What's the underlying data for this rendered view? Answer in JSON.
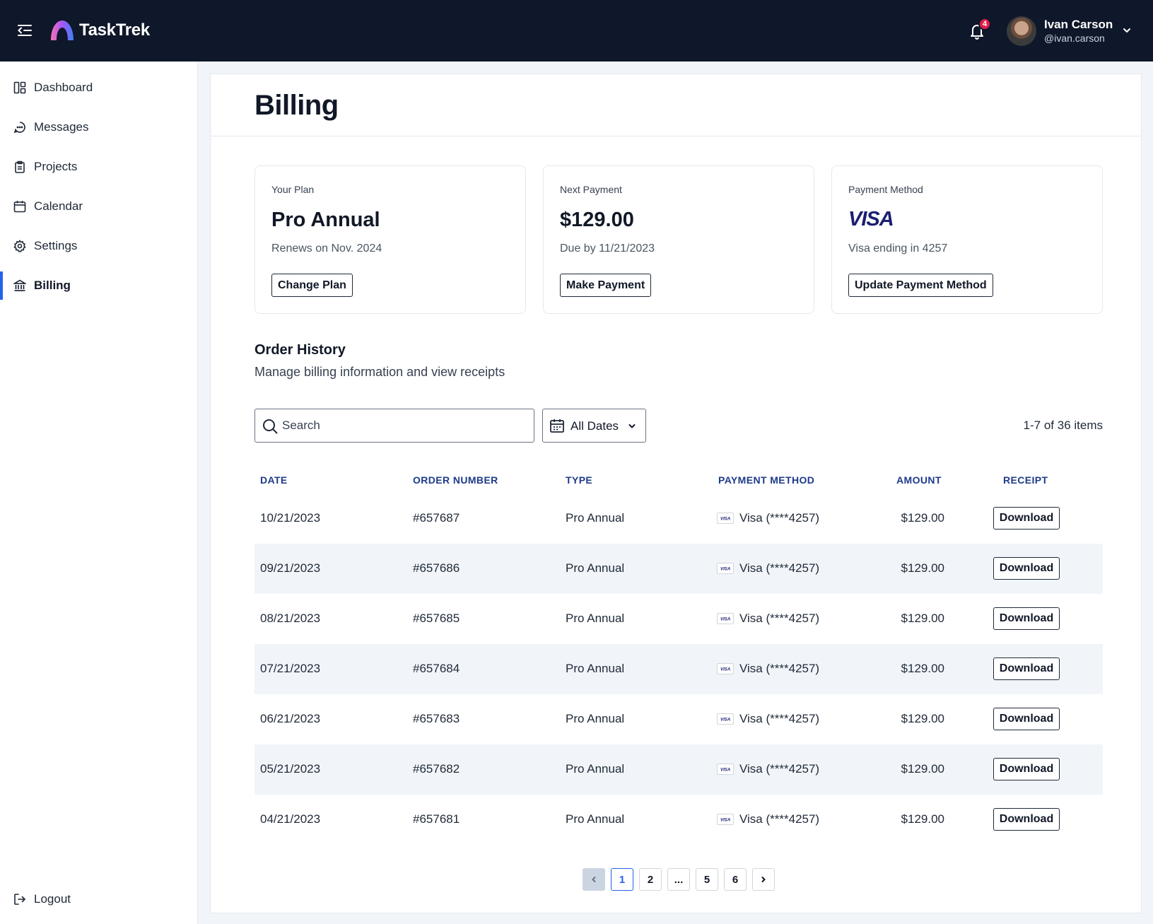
{
  "app": {
    "name": "TaskTrek",
    "notifications_count": "4",
    "user": {
      "name": "Ivan Carson",
      "handle": "@ivan.carson"
    }
  },
  "sidebar": {
    "items": [
      {
        "label": "Dashboard",
        "icon": "dashboard-icon"
      },
      {
        "label": "Messages",
        "icon": "message-icon"
      },
      {
        "label": "Projects",
        "icon": "clipboard-icon"
      },
      {
        "label": "Calendar",
        "icon": "calendar-icon"
      },
      {
        "label": "Settings",
        "icon": "gear-icon"
      },
      {
        "label": "Billing",
        "icon": "bank-icon",
        "active": true
      }
    ],
    "logout_label": "Logout"
  },
  "page": {
    "title": "Billing"
  },
  "cards": {
    "plan": {
      "label": "Your Plan",
      "value": "Pro Annual",
      "sub": "Renews on Nov. 2024",
      "button": "Change Plan"
    },
    "payment": {
      "label": "Next Payment",
      "value": "$129.00",
      "sub": "Due by 11/21/2023",
      "button": "Make Payment"
    },
    "method": {
      "label": "Payment Method",
      "logo": "VISA",
      "sub": "Visa ending in 4257",
      "button": "Update Payment Method"
    }
  },
  "orders": {
    "title": "Order History",
    "subtitle": "Manage billing information and view receipts",
    "search_placeholder": "Search",
    "date_filter": "All Dates",
    "items_count": "1-7 of 36 items",
    "columns": [
      "DATE",
      "ORDER NUMBER",
      "TYPE",
      "PAYMENT METHOD",
      "AMOUNT",
      "RECEIPT"
    ],
    "rows": [
      {
        "date": "10/21/2023",
        "order": "#657687",
        "type": "Pro Annual",
        "method": "Visa (****4257)",
        "amount": "$129.00",
        "receipt": "Download"
      },
      {
        "date": "09/21/2023",
        "order": "#657686",
        "type": "Pro Annual",
        "method": "Visa (****4257)",
        "amount": "$129.00",
        "receipt": "Download"
      },
      {
        "date": "08/21/2023",
        "order": "#657685",
        "type": "Pro Annual",
        "method": "Visa (****4257)",
        "amount": "$129.00",
        "receipt": "Download"
      },
      {
        "date": "07/21/2023",
        "order": "#657684",
        "type": "Pro Annual",
        "method": "Visa (****4257)",
        "amount": "$129.00",
        "receipt": "Download"
      },
      {
        "date": "06/21/2023",
        "order": "#657683",
        "type": "Pro Annual",
        "method": "Visa (****4257)",
        "amount": "$129.00",
        "receipt": "Download"
      },
      {
        "date": "05/21/2023",
        "order": "#657682",
        "type": "Pro Annual",
        "method": "Visa (****4257)",
        "amount": "$129.00",
        "receipt": "Download"
      },
      {
        "date": "04/21/2023",
        "order": "#657681",
        "type": "Pro Annual",
        "method": "Visa (****4257)",
        "amount": "$129.00",
        "receipt": "Download"
      }
    ],
    "pagination": {
      "pages": [
        "1",
        "2",
        "...",
        "5",
        "6"
      ],
      "current": "1"
    }
  },
  "colors": {
    "topbar": "#0f172a",
    "accent": "#2563eb",
    "header_text": "#1e3a8a",
    "badge": "#e11d48",
    "visa": "#1a1f71"
  }
}
